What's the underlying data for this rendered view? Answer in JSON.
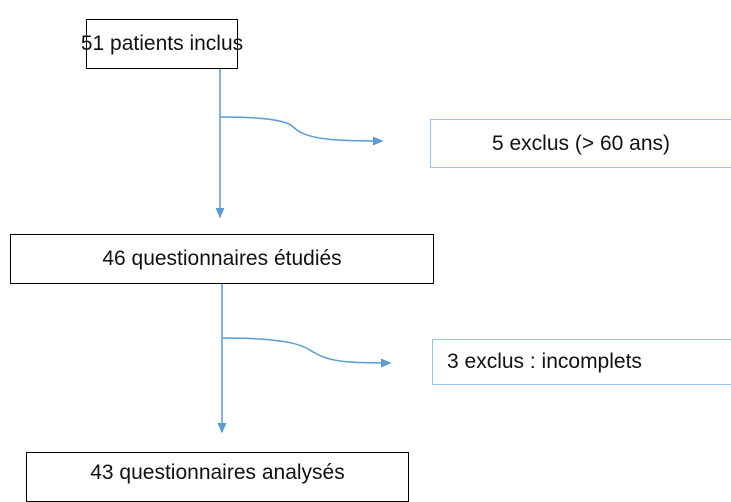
{
  "nodes": [
    {
      "label": "51 patients inclus"
    },
    {
      "label": "5 exclus (> 60 ans)"
    },
    {
      "label": "46 questionnaires étudiés"
    },
    {
      "label": "3 exclus : incomplets"
    },
    {
      "label": "43 questionnaires analysés"
    }
  ]
}
